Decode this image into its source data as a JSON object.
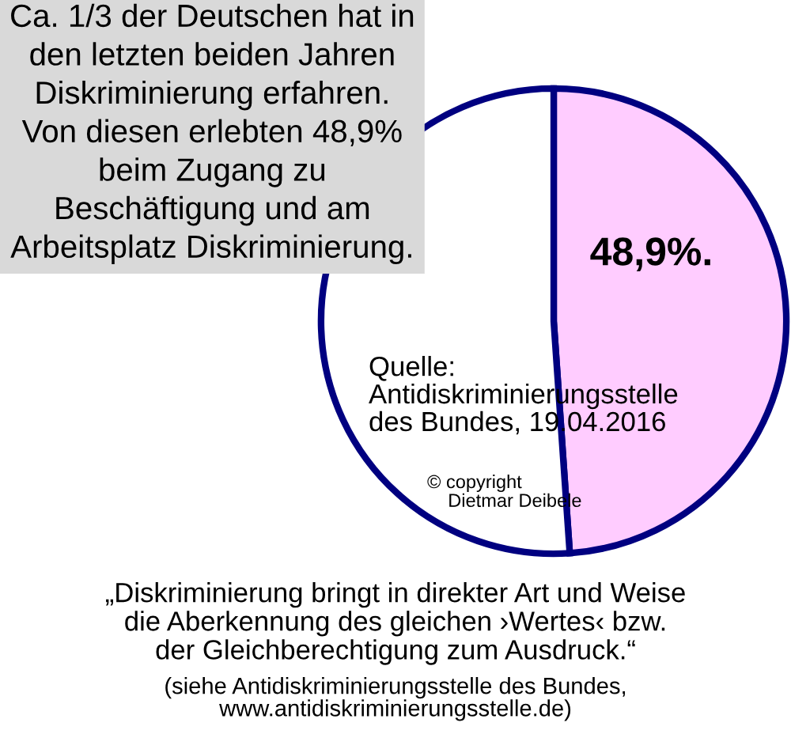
{
  "chart_data": {
    "type": "pie",
    "title": "Ca. 1/3 der Deutschen hat in\nden letzten beiden Jahren\nDiskriminierung erfahren.\nVon diesen erlebten 48,9%\nbeim Zugang zu\nBeschäftigung und am\nArbeitsplatz Diskriminierung.",
    "categories": [
      null,
      null
    ],
    "values": [
      48.9,
      51.1
    ],
    "colors": [
      "#ffccff",
      "#ffffff"
    ],
    "value_labels": [
      "48,9%.",
      null
    ],
    "annotations": [
      "Quelle:\nAntidiskriminierungsstelle\ndes Bundes, 19.04.2016",
      "© copyright\n    Dietmar Deibele",
      "„Diskriminierung bringt in direkter Art und Weise\ndie Aberkennung des gleichen ›Wertes‹ bzw.\nder Gleichberechtigung zum Ausdruck.“",
      "(siehe Antidiskriminierungsstelle des Bundes,\nwww.antidiskriminierungsstelle.de)"
    ],
    "legend": false
  }
}
